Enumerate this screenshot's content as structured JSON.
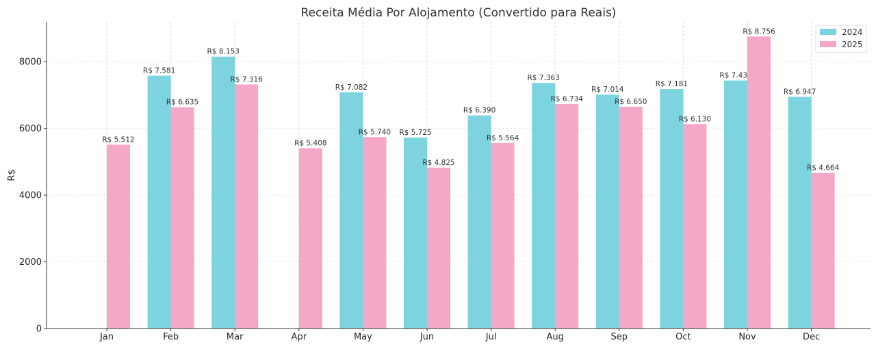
{
  "chart_data": {
    "type": "bar",
    "title": "Receita Média Por Alojamento (Convertido para Reais)",
    "xlabel": "",
    "ylabel": "R$",
    "ylim": [
      0,
      9194
    ],
    "yticks": [
      0,
      2000,
      4000,
      6000,
      8000
    ],
    "grid": true,
    "legend_placement": "top-right",
    "categories": [
      "Jan",
      "Feb",
      "Mar",
      "Apr",
      "May",
      "Jun",
      "Jul",
      "Aug",
      "Sep",
      "Oct",
      "Nov",
      "Dec"
    ],
    "series": [
      {
        "name": "2024",
        "color": "#7dd3de",
        "values": [
          null,
          7581,
          8153,
          null,
          7082,
          5725,
          6390,
          7363,
          7014,
          7181,
          7436,
          6947
        ],
        "labels": [
          null,
          "R$ 7.581",
          "R$ 8.153",
          null,
          "R$ 7.082",
          "R$ 5.725",
          "R$ 6.390",
          "R$ 7.363",
          "R$ 7.014",
          "R$ 7.181",
          "R$ 7.436",
          "R$ 6.947"
        ]
      },
      {
        "name": "2025",
        "color": "#f4a7c6",
        "values": [
          5512,
          6635,
          7316,
          5408,
          5740,
          4825,
          5564,
          6734,
          6650,
          6130,
          8756,
          4664
        ],
        "labels": [
          "R$ 5.512",
          "R$ 6.635",
          "R$ 7.316",
          "R$ 5.408",
          "R$ 5.740",
          "R$ 4.825",
          "R$ 5.564",
          "R$ 6.734",
          "R$ 6.650",
          "R$ 6.130",
          "R$ 8.756",
          "R$ 4.664"
        ]
      }
    ]
  }
}
